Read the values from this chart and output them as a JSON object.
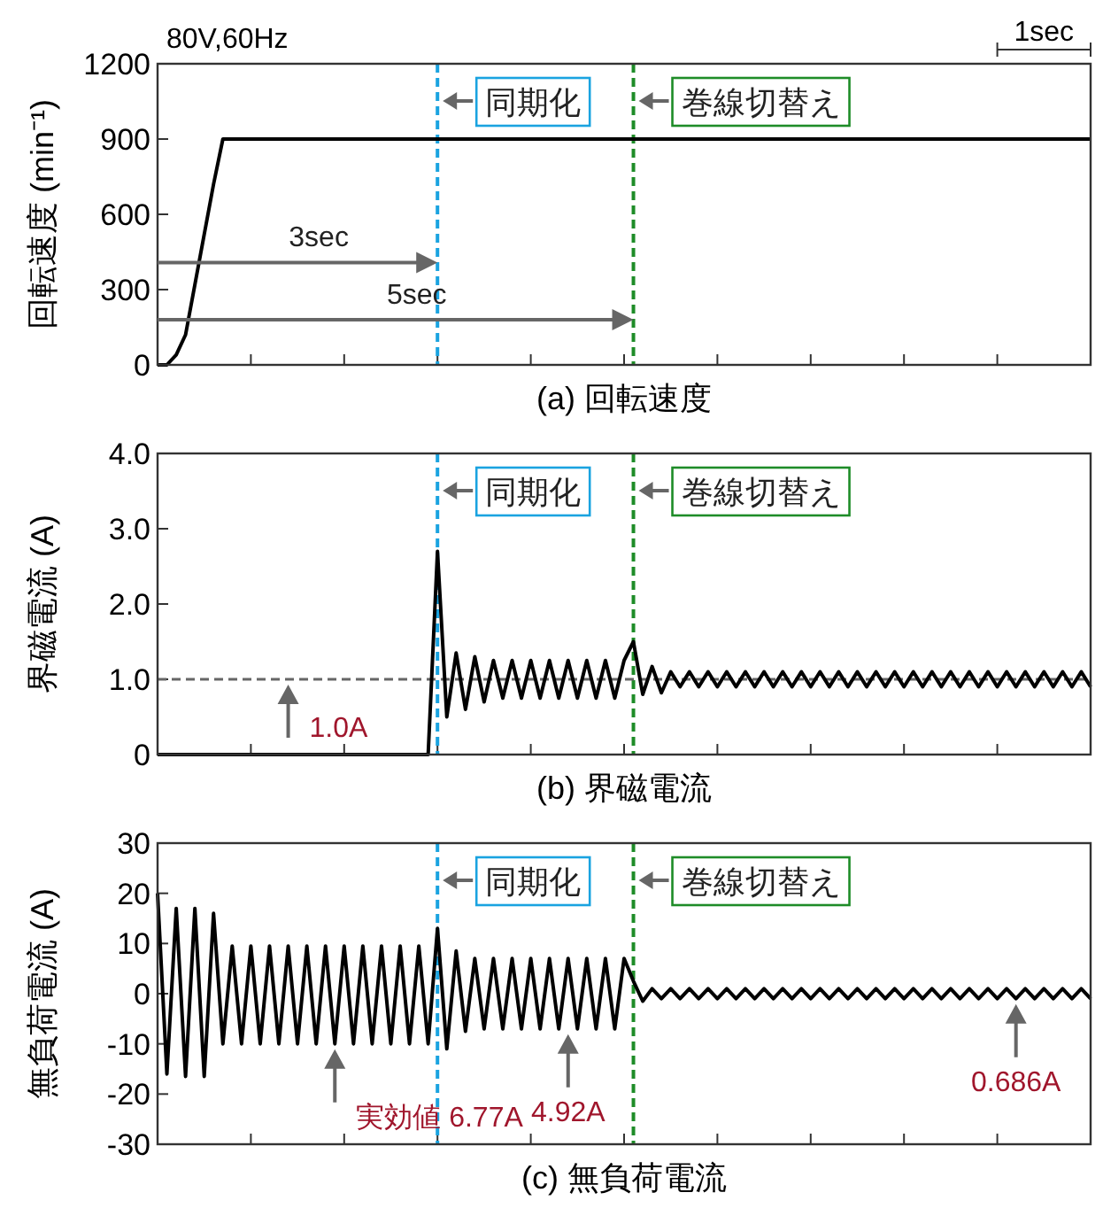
{
  "chart_data": [
    {
      "type": "line",
      "title": "(a) 回転速度",
      "ylabel": "回転速度 (min⁻¹)",
      "categories": [
        null,
        null,
        null,
        null,
        null,
        null,
        null,
        null,
        null,
        null,
        null,
        null,
        null,
        null,
        null,
        null,
        null,
        null,
        null,
        null,
        null,
        null,
        null,
        null,
        null,
        null,
        null,
        null,
        null,
        null,
        null,
        null,
        null,
        null,
        null,
        null,
        null,
        null,
        null,
        null,
        null,
        null,
        null,
        null,
        null,
        null,
        null,
        null,
        null,
        null,
        null,
        null,
        null,
        null,
        null,
        null,
        null,
        null,
        null,
        null,
        null,
        null,
        null,
        null,
        null,
        null,
        null,
        null,
        null,
        null,
        null,
        null,
        null,
        null,
        null,
        null,
        null,
        null,
        null,
        null,
        null,
        null,
        null,
        null,
        null,
        null,
        null,
        null,
        null,
        null,
        null,
        null,
        null,
        null,
        null,
        null,
        null,
        null,
        null,
        null,
        null
      ],
      "ylim": [
        0,
        1200
      ],
      "yticks": [
        0,
        300,
        600,
        900,
        1200
      ],
      "tick_labels": "y",
      "grid": false,
      "series": [
        {
          "color": "#000000",
          "values": [
            0,
            0,
            40,
            120,
            320,
            520,
            720,
            900,
            900,
            900,
            900,
            900,
            900,
            900,
            900,
            900,
            900,
            900,
            900,
            900,
            900,
            900,
            900,
            900,
            900,
            900,
            900,
            900,
            900,
            900,
            900,
            900,
            900,
            900,
            900,
            900,
            900,
            900,
            900,
            900,
            900,
            900,
            900,
            900,
            900,
            900,
            900,
            900,
            900,
            900,
            900,
            900,
            900,
            900,
            900,
            900,
            900,
            900,
            900,
            900,
            900,
            900,
            900,
            900,
            900,
            900,
            900,
            900,
            900,
            900,
            900,
            900,
            900,
            900,
            900,
            900,
            900,
            900,
            900,
            900,
            900,
            900,
            900,
            900,
            900,
            900,
            900,
            900,
            900,
            900,
            900,
            900,
            900,
            900,
            900,
            900,
            900,
            900,
            900,
            900,
            900
          ]
        }
      ],
      "annotations": [
        "80V,60Hz",
        "1sec",
        "同期化",
        "巻線切替え",
        "3sec",
        "5sec"
      ]
    },
    {
      "type": "line",
      "title": "(b) 界磁電流",
      "ylabel": "界磁電流 (A)",
      "categories": [
        null,
        null,
        null,
        null,
        null,
        null,
        null,
        null,
        null,
        null,
        null,
        null,
        null,
        null,
        null,
        null,
        null,
        null,
        null,
        null,
        null,
        null,
        null,
        null,
        null,
        null,
        null,
        null,
        null,
        null,
        null,
        null,
        null,
        null,
        null,
        null,
        null,
        null,
        null,
        null,
        null,
        null,
        null,
        null,
        null,
        null,
        null,
        null,
        null,
        null,
        null,
        null,
        null,
        null,
        null,
        null,
        null,
        null,
        null,
        null,
        null,
        null,
        null,
        null,
        null,
        null,
        null,
        null,
        null,
        null,
        null,
        null,
        null,
        null,
        null,
        null,
        null,
        null,
        null,
        null,
        null,
        null,
        null,
        null,
        null,
        null,
        null,
        null,
        null,
        null,
        null,
        null,
        null,
        null,
        null,
        null,
        null,
        null,
        null,
        null,
        null
      ],
      "ylim": [
        0,
        4
      ],
      "yticks": [
        0,
        {
          "value": 1,
          "label": "1.0"
        },
        {
          "value": 2,
          "label": "2.0"
        },
        {
          "value": 3,
          "label": "3.0"
        },
        {
          "value": 4,
          "label": "4.0"
        }
      ],
      "tick_labels": "y",
      "grid": false,
      "series": [
        {
          "color": "#000000",
          "values": [
            0,
            0,
            0,
            0,
            0,
            0,
            0,
            0,
            0,
            0,
            0,
            0,
            0,
            0,
            0,
            0,
            0,
            0,
            0,
            0,
            0,
            0,
            0,
            0,
            0,
            0,
            0,
            0,
            0,
            0,
            2.7,
            0.5,
            1.35,
            0.6,
            1.3,
            0.7,
            1.25,
            0.75,
            1.25,
            0.75,
            1.25,
            0.75,
            1.25,
            0.75,
            1.25,
            0.75,
            1.25,
            0.75,
            1.25,
            0.75,
            1.25,
            1.5,
            0.8,
            1.17,
            0.82,
            1.1,
            0.9,
            1.1,
            0.9,
            1.1,
            0.9,
            1.1,
            0.9,
            1.1,
            0.9,
            1.1,
            0.9,
            1.1,
            0.9,
            1.1,
            0.9,
            1.1,
            0.9,
            1.1,
            0.9,
            1.1,
            0.9,
            1.1,
            0.9,
            1.1,
            0.9,
            1.1,
            0.9,
            1.1,
            0.9,
            1.1,
            0.9,
            1.1,
            0.9,
            1.1,
            0.9,
            1.1,
            0.9,
            1.1,
            0.9,
            1.1,
            0.9,
            1.1,
            0.9,
            1.1,
            0.9
          ]
        }
      ],
      "ref_lines": [
        {
          "axis": "y",
          "value": 1.0,
          "color": "#666666",
          "line_style": "dashed"
        }
      ],
      "annotations": [
        "同期化",
        "巻線切替え",
        {
          "text": "1.0A",
          "y": 1.0
        }
      ]
    },
    {
      "type": "line",
      "title": "(c) 無負荷電流",
      "ylabel": "無負荷電流 (A)",
      "categories": [
        null,
        null,
        null,
        null,
        null,
        null,
        null,
        null,
        null,
        null,
        null,
        null,
        null,
        null,
        null,
        null,
        null,
        null,
        null,
        null,
        null,
        null,
        null,
        null,
        null,
        null,
        null,
        null,
        null,
        null,
        null,
        null,
        null,
        null,
        null,
        null,
        null,
        null,
        null,
        null,
        null,
        null,
        null,
        null,
        null,
        null,
        null,
        null,
        null,
        null,
        null,
        null,
        null,
        null,
        null,
        null,
        null,
        null,
        null,
        null,
        null,
        null,
        null,
        null,
        null,
        null,
        null,
        null,
        null,
        null,
        null,
        null,
        null,
        null,
        null,
        null,
        null,
        null,
        null,
        null,
        null,
        null,
        null,
        null,
        null,
        null,
        null,
        null,
        null,
        null,
        null,
        null,
        null,
        null,
        null,
        null,
        null,
        null,
        null,
        null,
        null
      ],
      "ylim": [
        -30,
        30
      ],
      "yticks": [
        -30,
        -20,
        -10,
        0,
        10,
        20,
        30
      ],
      "tick_labels": "y",
      "grid": false,
      "series": [
        {
          "color": "#000000",
          "values": [
            20,
            -16,
            17,
            -16.5,
            17,
            -16.5,
            16,
            -10,
            9.5,
            -10,
            9.5,
            -10,
            9.5,
            -10,
            9.5,
            -10,
            9.5,
            -10,
            9.5,
            -10,
            9.5,
            -10,
            9.5,
            -10,
            9.5,
            -10,
            9.5,
            -10,
            9.5,
            -10,
            13,
            -11,
            8.5,
            -7.5,
            7,
            -7,
            7,
            -7,
            7,
            -7,
            7,
            -7,
            7,
            -7,
            7,
            -7,
            7,
            -7,
            7,
            -7,
            7,
            2.5,
            -1.5,
            1,
            -1,
            1,
            -1,
            1,
            -1,
            1,
            -1,
            1,
            -1,
            1,
            -1,
            1,
            -1,
            1,
            -1,
            1,
            -1,
            1,
            -1,
            1,
            -1,
            1,
            -1,
            1,
            -1,
            1,
            -1,
            1,
            -1,
            1,
            -1,
            1,
            -1,
            1,
            -1,
            1,
            -1,
            1,
            -1,
            1,
            -1,
            1,
            -1,
            1,
            -1,
            1,
            -1
          ]
        }
      ],
      "annotations": [
        "同期化",
        "巻線切替え",
        {
          "text": "実効値 6.77A",
          "y": -10
        },
        {
          "text": "4.92A",
          "y": -7
        },
        {
          "text": "0.686A",
          "y": -1
        }
      ]
    }
  ]
}
